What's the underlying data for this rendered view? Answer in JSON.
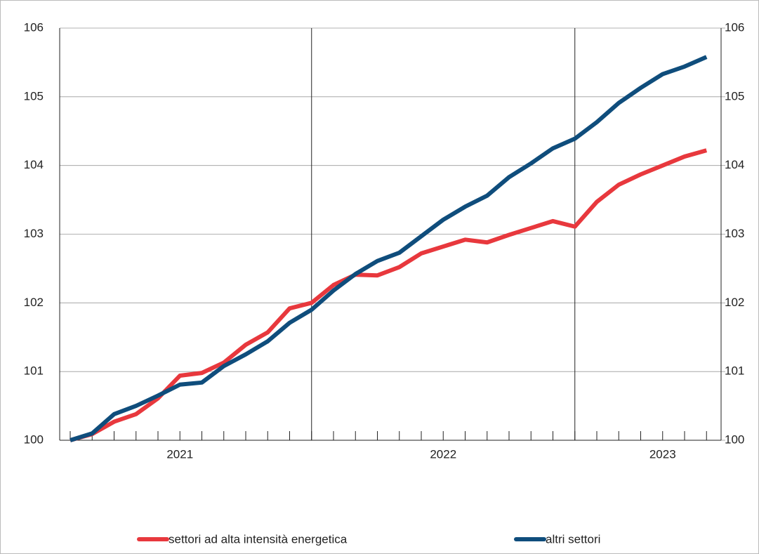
{
  "chart_data": {
    "type": "line",
    "categories": [
      null,
      null,
      null,
      null,
      null,
      "2021",
      null,
      null,
      null,
      null,
      null,
      null,
      null,
      null,
      null,
      null,
      null,
      "2022",
      null,
      null,
      null,
      null,
      null,
      null,
      null,
      null,
      null,
      "2023",
      null,
      null
    ],
    "series": [
      {
        "name": "settori ad alta intensità energetica",
        "color": "#e8383d",
        "values": [
          100.0,
          100.09,
          100.27,
          100.38,
          100.61,
          100.94,
          100.98,
          101.13,
          101.39,
          101.57,
          101.92,
          102.0,
          102.26,
          102.41,
          102.4,
          102.52,
          102.72,
          102.82,
          102.92,
          102.88,
          102.99,
          103.09,
          103.19,
          103.11,
          103.47,
          103.72,
          103.87,
          104.0,
          104.13,
          104.22
        ]
      },
      {
        "name": "altri settori",
        "color": "#0f4d7c",
        "values": [
          100.0,
          100.1,
          100.38,
          100.5,
          100.65,
          100.81,
          100.84,
          101.08,
          101.25,
          101.44,
          101.71,
          101.9,
          102.18,
          102.42,
          102.61,
          102.73,
          102.97,
          103.21,
          103.4,
          103.56,
          103.83,
          104.03,
          104.25,
          104.39,
          104.63,
          104.91,
          105.13,
          105.33,
          105.44,
          105.58
        ]
      }
    ],
    "ylim": [
      100,
      106
    ],
    "yticks": [
      100,
      101,
      102,
      103,
      104,
      105,
      106
    ],
    "y2lim": [
      100,
      106
    ],
    "y2ticks": [
      100,
      101,
      102,
      103,
      104,
      105,
      106
    ],
    "grid": true,
    "legend": "bottom"
  }
}
